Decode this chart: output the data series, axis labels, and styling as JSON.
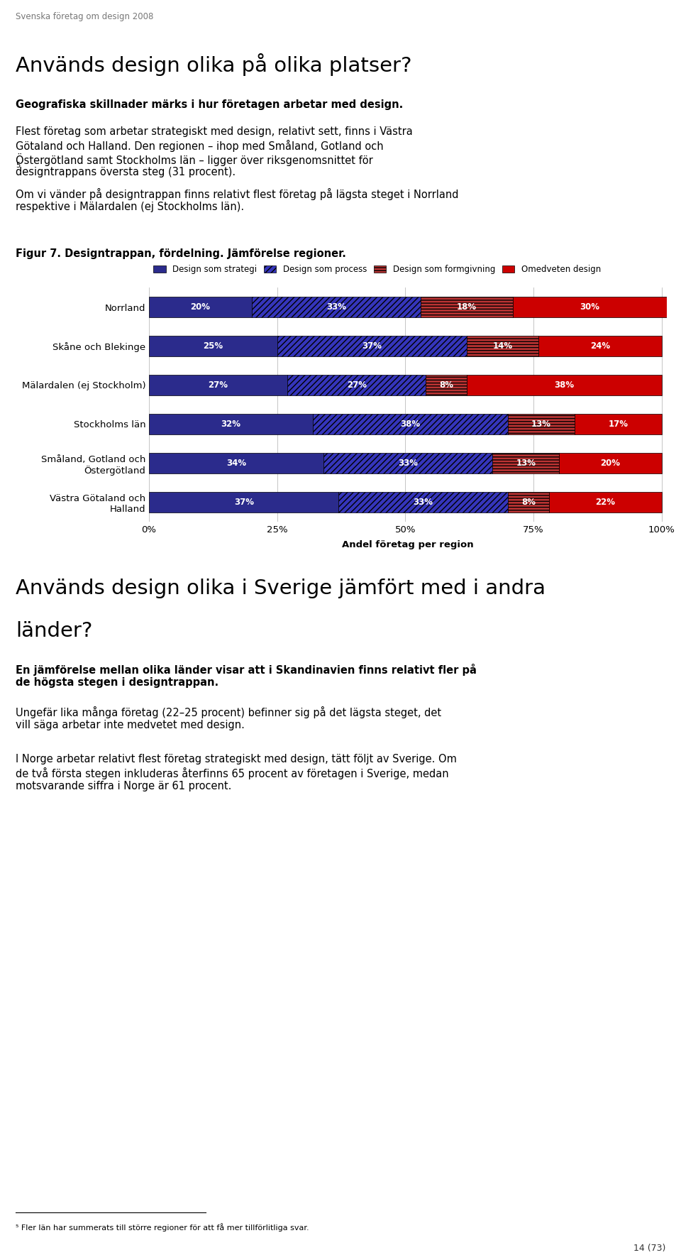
{
  "page_header": "Svenska företag om design 2008",
  "page_number": "14 (73)",
  "section_title": "Används design olika på olika platser?",
  "bold_subtitle": "Geografiska skillnader märks i hur företagen arbetar med design.",
  "p1_line1": "Flest företag som arbetar strategiskt med design, relativt sett, finns i Västra",
  "p1_line2": "Götaland och Halland. Den regionen – ihop med Småland, Gotland och",
  "p1_line3": "Östergötland samt Stockholms län – ligger över riksgenomsnittet för",
  "p1_line4": "designtrappans översta steg (31 procent).",
  "p1_superscript": "5",
  "p2_line1": "Om vi vänder på designtrappan finns relativt flest företag på lägsta steget i Norrland",
  "p2_line2": "respektive i Mälardalen (ej Stockholms län).",
  "figure_caption": "Figur 7. Designtrappan, fördelning. Jämförelse regioner.",
  "legend_labels": [
    "Design som strategi",
    "Design som process",
    "Design som formgivning",
    "Omedveten design"
  ],
  "regions": [
    "Norrland",
    "Skåne och Blekinge",
    "Mälardalen (ej Stockholm)",
    "Stockholms län",
    "Småland, Gotland och\nÖstergötland",
    "Västra Götaland och\nHalland"
  ],
  "data": [
    [
      20,
      33,
      18,
      30
    ],
    [
      25,
      37,
      14,
      24
    ],
    [
      27,
      27,
      8,
      38
    ],
    [
      32,
      38,
      13,
      17
    ],
    [
      34,
      33,
      13,
      20
    ],
    [
      37,
      33,
      8,
      22
    ]
  ],
  "xlabel": "Andel företag per region",
  "xtick_labels": [
    "0%",
    "25%",
    "50%",
    "75%",
    "100%"
  ],
  "xtick_values": [
    0,
    25,
    50,
    75,
    100
  ],
  "section2_title_line1": "Används design olika i Sverige jämfört med i andra",
  "section2_title_line2": "länder?",
  "bold_subtitle2_line1": "En jämförelse mellan olika länder visar att i Skandinavien finns relativt fler på",
  "bold_subtitle2_line2": "de högsta stegen i designtrappan.",
  "p3": "Ungefär lika många företag (22–25 procent) befinner sig på det lägsta steget, det\nvill säga arbetar inte medvetet med design.",
  "p4_line1": "I Norge arbetar relativt flest företag strategiskt med design, tätt följt av Sverige. Om",
  "p4_line2": "de två första stegen inkluderas återfinns 65 procent av företagen i Sverige, medan",
  "p4_line3": "motsvarande siffra i Norge är 61 procent.",
  "footnote": "⁵ Fler län har summerats till större regioner för att få mer tillförlitliga svar.",
  "background_color": "#FFFFFF",
  "grid_color": "#BBBBBB",
  "color_strategi": "#2B2B8C",
  "color_process_face": "#3535BB",
  "color_formgivning_face": "#BB3333",
  "color_omedveten": "#CC0000"
}
